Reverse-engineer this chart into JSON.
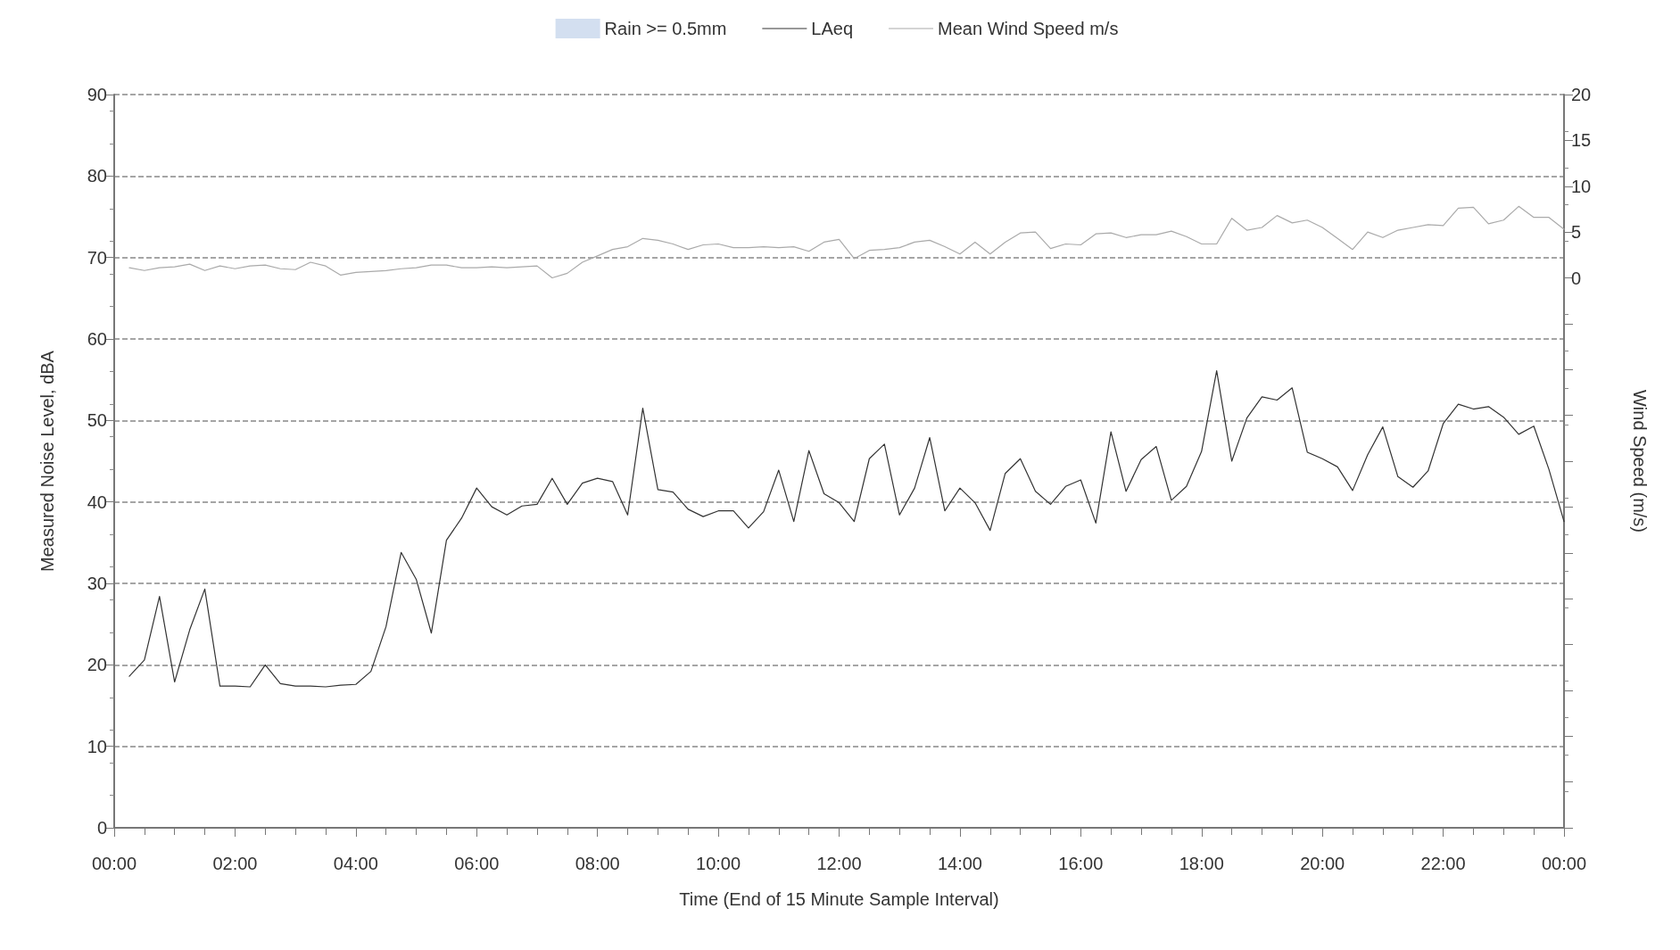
{
  "chart_data": {
    "type": "line",
    "xlabel": "Time (End of 15 Minute Sample Interval)",
    "ylabel": "Measured Noise Level, dBA",
    "y2label": "Wind Speed (m/s)",
    "x": [
      0.25,
      0.5,
      0.75,
      1,
      1.25,
      1.5,
      1.75,
      2,
      2.25,
      2.5,
      2.75,
      3,
      3.25,
      3.5,
      3.75,
      4,
      4.25,
      4.5,
      4.75,
      5,
      5.25,
      5.5,
      5.75,
      6,
      6.25,
      6.5,
      6.75,
      7,
      7.25,
      7.5,
      7.75,
      8,
      8.25,
      8.5,
      8.75,
      9,
      9.25,
      9.5,
      9.75,
      10,
      10.25,
      10.5,
      10.75,
      11,
      11.25,
      11.5,
      11.75,
      12,
      12.25,
      12.5,
      12.75,
      13,
      13.25,
      13.5,
      13.75,
      14,
      14.25,
      14.5,
      14.75,
      15,
      15.25,
      15.5,
      15.75,
      16,
      16.25,
      16.5,
      16.75,
      17,
      17.25,
      17.5,
      17.75,
      18,
      18.25,
      18.5,
      18.75,
      19,
      19.25,
      19.5,
      19.75,
      20,
      20.25,
      20.5,
      20.75,
      21,
      21.25,
      21.5,
      21.75,
      22,
      22.25,
      22.5,
      22.75,
      23,
      23.25,
      23.5,
      23.75,
      24
    ],
    "series": [
      {
        "name": "Rain >= 0.5mm",
        "type": "area",
        "color": "#d3dff0",
        "values": [
          null,
          null,
          null,
          null,
          null,
          null,
          null,
          null,
          null,
          null,
          null,
          null,
          null,
          null,
          null,
          null,
          null,
          null,
          null,
          null,
          null,
          null,
          null,
          null,
          null,
          null,
          null,
          null,
          null,
          null,
          null,
          null,
          null,
          null,
          null,
          null,
          null,
          null,
          null,
          null,
          null,
          null,
          null,
          null,
          null,
          null,
          null,
          null,
          null,
          null,
          null,
          null,
          null,
          null,
          null,
          null,
          null,
          null,
          null,
          null,
          null,
          null,
          null,
          null,
          null,
          null,
          null,
          null,
          null,
          null,
          null,
          null,
          null,
          null,
          null,
          null,
          null,
          null,
          null,
          null,
          null,
          null,
          null,
          null,
          null,
          null,
          null,
          null,
          null,
          null,
          null,
          null,
          null,
          null,
          null,
          null
        ]
      },
      {
        "name": "LAeq",
        "color": "#333333",
        "values": [
          18.6,
          20.6,
          28.4,
          17.9,
          24.3,
          29.3,
          17.4,
          17.4,
          17.3,
          20.0,
          17.7,
          17.4,
          17.4,
          17.3,
          17.5,
          17.6,
          19.2,
          24.7,
          33.8,
          30.5,
          23.9,
          35.3,
          38.0,
          41.7,
          39.4,
          38.4,
          39.5,
          39.7,
          42.9,
          39.7,
          42.3,
          42.9,
          42.5,
          38.4,
          51.5,
          41.5,
          41.2,
          39.1,
          38.2,
          38.9,
          38.9,
          36.8,
          38.8,
          43.9,
          37.6,
          46.3,
          41.0,
          39.9,
          37.6,
          45.3,
          47.1,
          38.4,
          41.7,
          47.9,
          38.9,
          41.7,
          39.9,
          36.5,
          43.5,
          45.3,
          41.3,
          39.7,
          41.9,
          42.7,
          37.4,
          48.6,
          41.3,
          45.2,
          46.8,
          40.2,
          41.9,
          46.2,
          56.1,
          45.0,
          50.3,
          52.9,
          52.5,
          54.0,
          46.1,
          45.3,
          44.3,
          41.4,
          45.8,
          49.2,
          43.1,
          41.8,
          43.8,
          49.6,
          52.0,
          51.4,
          51.7,
          50.4,
          48.3,
          49.3,
          44.0,
          37.6
        ]
      },
      {
        "name": "Mean Wind Speed m/s",
        "color": "#aaaaaa",
        "axis": "y2",
        "values": [
          1.1,
          0.8,
          1.1,
          1.2,
          1.5,
          0.8,
          1.3,
          1.0,
          1.3,
          1.4,
          1.0,
          0.9,
          1.7,
          1.3,
          0.3,
          0.6,
          0.7,
          0.8,
          1.0,
          1.1,
          1.4,
          1.4,
          1.1,
          1.1,
          1.2,
          1.1,
          1.2,
          1.3,
          0.0,
          0.5,
          1.7,
          2.4,
          3.1,
          3.4,
          4.3,
          4.1,
          3.7,
          3.1,
          3.6,
          3.7,
          3.3,
          3.3,
          3.4,
          3.3,
          3.4,
          2.9,
          3.9,
          4.2,
          2.1,
          3.0,
          3.1,
          3.3,
          3.9,
          4.1,
          3.4,
          2.6,
          3.9,
          2.6,
          3.9,
          4.9,
          5.0,
          3.2,
          3.7,
          3.6,
          4.8,
          4.9,
          4.4,
          4.7,
          4.7,
          5.1,
          4.5,
          3.7,
          3.7,
          6.5,
          5.2,
          5.5,
          6.8,
          6.0,
          6.3,
          5.5,
          4.3,
          3.1,
          5.0,
          4.4,
          5.2,
          5.5,
          5.8,
          5.7,
          7.6,
          7.7,
          5.9,
          6.3,
          7.8,
          6.6,
          6.6,
          5.3
        ]
      }
    ],
    "xlim": [
      0,
      24
    ],
    "xticks": [
      {
        "value": 0,
        "label": "00:00"
      },
      {
        "value": 2,
        "label": "02:00"
      },
      {
        "value": 4,
        "label": "04:00"
      },
      {
        "value": 6,
        "label": "06:00"
      },
      {
        "value": 8,
        "label": "08:00"
      },
      {
        "value": 10,
        "label": "10:00"
      },
      {
        "value": 12,
        "label": "12:00"
      },
      {
        "value": 14,
        "label": "14:00"
      },
      {
        "value": 16,
        "label": "16:00"
      },
      {
        "value": 18,
        "label": "18:00"
      },
      {
        "value": 20,
        "label": "20:00"
      },
      {
        "value": 22,
        "label": "22:00"
      },
      {
        "value": 24,
        "label": "00:00"
      }
    ],
    "ylim": [
      0,
      90
    ],
    "yticks": [
      0,
      10,
      20,
      30,
      40,
      50,
      60,
      70,
      80,
      90
    ],
    "y2lim": [
      -60,
      20
    ],
    "y2ticks": [
      {
        "value": -60,
        "label": null
      },
      {
        "value": -55,
        "label": null
      },
      {
        "value": -50,
        "label": null
      },
      {
        "value": -45,
        "label": null
      },
      {
        "value": -40,
        "label": null
      },
      {
        "value": -35,
        "label": null
      },
      {
        "value": -30,
        "label": null
      },
      {
        "value": -25,
        "label": null
      },
      {
        "value": -20,
        "label": null
      },
      {
        "value": -15,
        "label": null
      },
      {
        "value": -10,
        "label": null
      },
      {
        "value": -5,
        "label": null
      },
      0,
      5,
      10,
      15,
      20
    ],
    "grid": "y",
    "legend": "top",
    "marker": "none",
    "line_style": "solid"
  }
}
